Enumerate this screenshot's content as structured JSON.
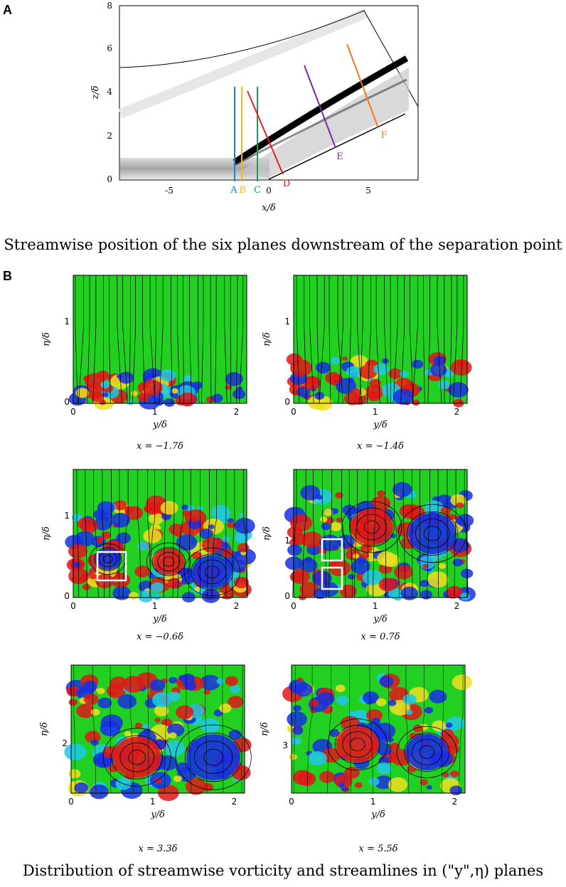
{
  "panel_a": {
    "letter": "A",
    "ylabel": "z/δ",
    "xlabel": "x/δ",
    "yticks": [
      "0",
      "2",
      "4",
      "6",
      "8"
    ],
    "xticks": [
      "-5",
      "0",
      "5"
    ],
    "plane_labels": [
      "A",
      "B",
      "C",
      "D",
      "E",
      "F"
    ],
    "plane_colors": [
      "#1f7fd0",
      "#f2b81a",
      "#1aa05a",
      "#e52020",
      "#7a2aa0",
      "#f07a20"
    ],
    "caption": "Streamwise position of the six planes downstream of the separation point"
  },
  "panel_b": {
    "letter": "B",
    "caption": "Distribution of streamwise vorticity and streamlines in (\"y\",η) planes",
    "ylabel": "η/δ",
    "xlabel": "y/δ",
    "xticks": [
      "0",
      "1",
      "2"
    ],
    "plots": [
      {
        "title": "x = −1.7δ",
        "yticks": [
          "0",
          "1"
        ]
      },
      {
        "title": "x = −1.4δ",
        "yticks": [
          "0",
          "1"
        ]
      },
      {
        "title": "x = −0.6δ",
        "yticks": [
          "0",
          "1"
        ]
      },
      {
        "title": "x = 0.7δ",
        "yticks": [
          "0",
          "1"
        ]
      },
      {
        "title": "x = 3.3δ",
        "yticks": [
          "2"
        ]
      },
      {
        "title": "x = 5.5δ",
        "yticks": [
          "3"
        ]
      }
    ],
    "colors": {
      "background": "#22d022",
      "positive": "#e01818",
      "negative": "#1830e0",
      "cyan": "#20c8e8",
      "yellow": "#f0e020"
    }
  }
}
